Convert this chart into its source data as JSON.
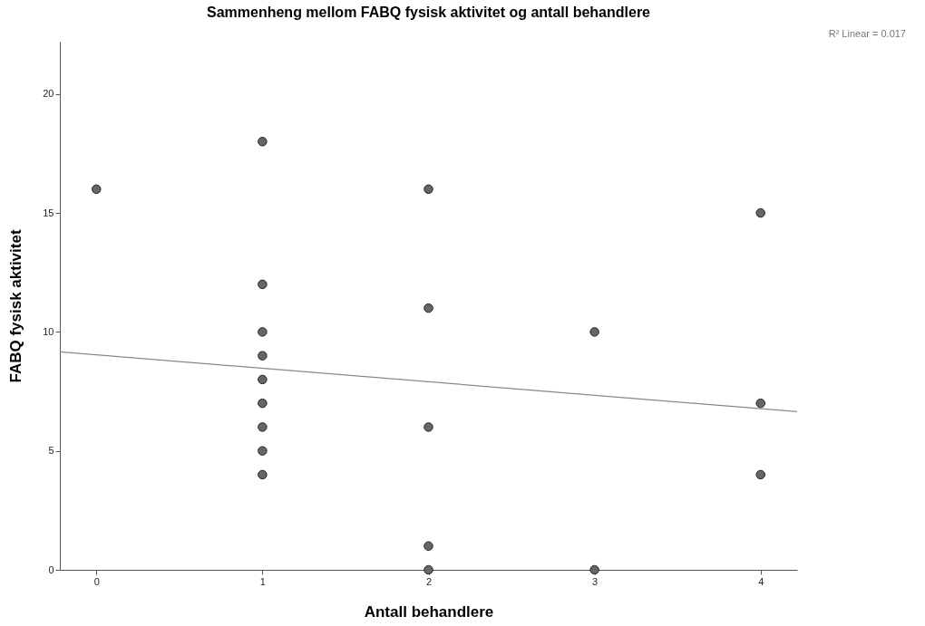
{
  "chart_data": {
    "type": "scatter",
    "title": "Sammenheng mellom FABQ fysisk aktivitet og antall behandlere",
    "xlabel": "Antall behandlere",
    "ylabel": "FABQ fysisk aktivitet",
    "annotations": [
      "R² Linear = 0.017"
    ],
    "series": [
      {
        "marker": "circle",
        "color": "#666666",
        "x": [
          0,
          1,
          1,
          1,
          1,
          1,
          1,
          1,
          1,
          1,
          2,
          2,
          2,
          2,
          2,
          3,
          3,
          4,
          4,
          4
        ],
        "values": [
          16,
          18,
          12,
          10,
          9,
          8,
          7,
          6,
          5,
          4,
          16,
          11,
          6,
          1,
          0,
          10,
          0,
          15,
          7,
          4
        ]
      },
      {
        "type": "line",
        "marker": "none",
        "color": "#888888",
        "x": [
          -0.22,
          4.22
        ],
        "values": [
          9.16,
          6.65
        ]
      }
    ],
    "xlim": [
      -0.22,
      4.22
    ],
    "ylim": [
      0,
      22.2
    ],
    "xticks": [
      0,
      1,
      2,
      3,
      4
    ],
    "yticks": [
      0,
      5,
      10,
      15,
      20
    ],
    "grid": false
  }
}
